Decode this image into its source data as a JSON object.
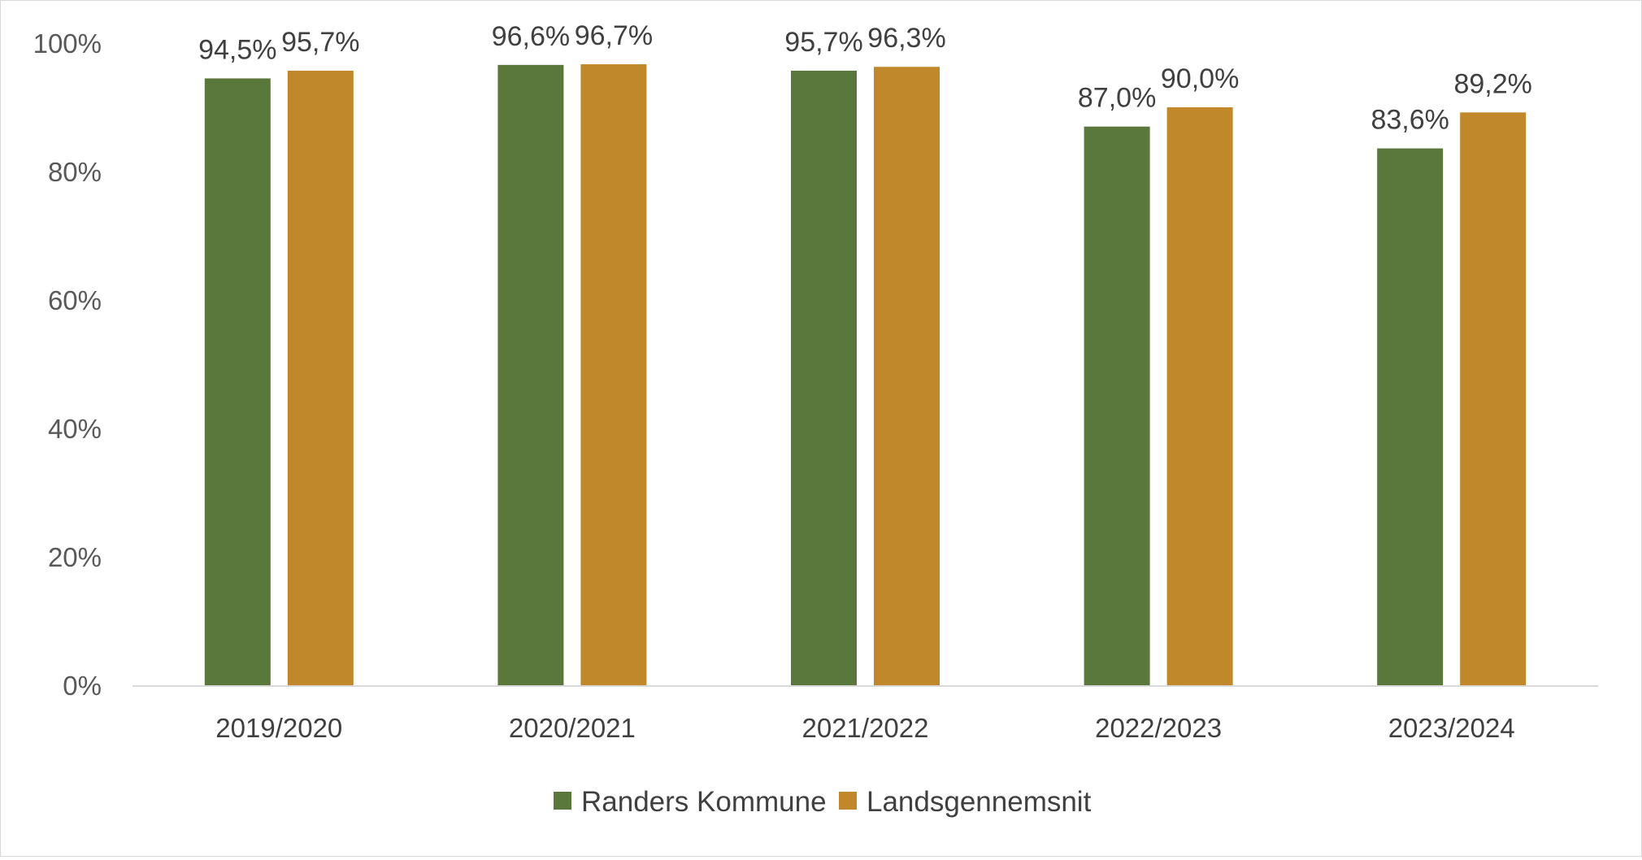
{
  "chart_data": {
    "type": "bar",
    "categories": [
      "2019/2020",
      "2020/2021",
      "2021/2022",
      "2022/2023",
      "2023/2024"
    ],
    "series": [
      {
        "name": "Randers Kommune",
        "values": [
          94.5,
          96.6,
          95.7,
          87.0,
          83.6
        ],
        "labels": [
          "94,5%",
          "96,6%",
          "95,7%",
          "87,0%",
          "83,6%"
        ],
        "color": "#5a783c"
      },
      {
        "name": "Landsgennemsnit",
        "values": [
          95.7,
          96.7,
          96.3,
          90.0,
          89.2
        ],
        "labels": [
          "95,7%",
          "96,7%",
          "96,3%",
          "90,0%",
          "89,2%"
        ],
        "color": "#c0882a"
      }
    ],
    "yticks": [
      0,
      20,
      40,
      60,
      80,
      100
    ],
    "ytick_labels": [
      "0%",
      "20%",
      "40%",
      "60%",
      "80%",
      "100%"
    ],
    "ylim": [
      0,
      100
    ],
    "grid": false,
    "legend": "bottom-center",
    "axis_color": "#d9d9d9"
  }
}
